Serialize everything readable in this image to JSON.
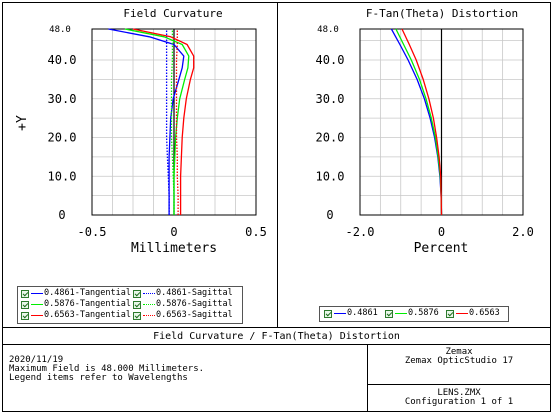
{
  "left_plot": {
    "title": "Field Curvature",
    "x_tick_labels": [
      "-0.5",
      "0",
      "0.5"
    ],
    "y_tick_labels": [
      "0",
      "10.0",
      "20.0",
      "30.0",
      "40.0"
    ],
    "y_max_label": "48.0",
    "xlabel": "Millimeters",
    "ylabel": "+Y"
  },
  "right_plot": {
    "title": "F-Tan(Theta) Distortion",
    "x_tick_labels": [
      "-2.0",
      "0",
      "2.0"
    ],
    "y_tick_labels": [
      "0",
      "10.0",
      "20.0",
      "30.0",
      "40.0"
    ],
    "y_max_label": "48.0",
    "xlabel": "Percent"
  },
  "legend_left": {
    "items": [
      {
        "label": "0.4861-Tangential",
        "color": "#0000ff",
        "style": "solid"
      },
      {
        "label": "0.4861-Sagittal",
        "color": "#0000ff",
        "style": "dotted"
      },
      {
        "label": "0.5876-Tangential",
        "color": "#00ee00",
        "style": "solid"
      },
      {
        "label": "0.5876-Sagittal",
        "color": "#00ee00",
        "style": "dotted"
      },
      {
        "label": "0.6563-Tangential",
        "color": "#ff0000",
        "style": "solid"
      },
      {
        "label": "0.6563-Sagittal",
        "color": "#ff0000",
        "style": "dotted"
      }
    ]
  },
  "legend_right": {
    "items": [
      {
        "label": "0.4861",
        "color": "#0000ff"
      },
      {
        "label": "0.5876",
        "color": "#00ee00"
      },
      {
        "label": "0.6563",
        "color": "#ff0000"
      }
    ]
  },
  "footer": {
    "title": "Field Curvature / F-Tan(Theta) Distortion",
    "date": "2020/11/19",
    "line2": "Maximum Field is 48.000 Millimeters.",
    "line3": "Legend items refer to Wavelengths",
    "brand": "Zemax",
    "product": "Zemax OpticStudio 17",
    "file": "LENS.ZMX",
    "config": "Configuration 1 of 1"
  },
  "chart_data": [
    {
      "type": "line",
      "title": "Field Curvature",
      "xlabel": "Millimeters",
      "ylabel": "+Y",
      "xlim": [
        -0.5,
        0.5
      ],
      "ylim": [
        0,
        48.0
      ],
      "grid": true,
      "series": [
        {
          "name": "0.4861-Tangential",
          "color": "#0000ff",
          "style": "solid",
          "y": [
            0,
            5,
            10,
            15,
            20,
            25,
            30,
            35,
            38,
            41,
            44,
            46,
            48
          ],
          "x": [
            -0.03,
            -0.03,
            -0.03,
            -0.03,
            -0.025,
            -0.02,
            -0.005,
            0.03,
            0.05,
            0.06,
            0.0,
            -0.15,
            -0.4
          ]
        },
        {
          "name": "0.4861-Sagittal",
          "color": "#0000ff",
          "style": "dotted",
          "y": [
            0,
            5,
            10,
            15,
            20,
            25,
            30,
            35,
            40,
            44,
            48
          ],
          "x": [
            -0.03,
            -0.03,
            -0.035,
            -0.04,
            -0.045,
            -0.045,
            -0.045,
            -0.045,
            -0.045,
            -0.045,
            -0.045
          ]
        },
        {
          "name": "0.5876-Tangential",
          "color": "#00ee00",
          "style": "solid",
          "y": [
            0,
            5,
            10,
            15,
            20,
            25,
            30,
            35,
            38,
            41,
            44,
            46,
            48
          ],
          "x": [
            0.0,
            0.0,
            0.0,
            0.005,
            0.01,
            0.02,
            0.035,
            0.065,
            0.085,
            0.09,
            0.05,
            -0.06,
            -0.3
          ]
        },
        {
          "name": "0.5876-Sagittal",
          "color": "#00ee00",
          "style": "dotted",
          "y": [
            0,
            5,
            10,
            15,
            20,
            25,
            30,
            35,
            40,
            44,
            48
          ],
          "x": [
            0.0,
            0.0,
            -0.005,
            -0.01,
            -0.015,
            -0.015,
            -0.015,
            -0.015,
            -0.01,
            -0.01,
            -0.01
          ]
        },
        {
          "name": "0.6563-Tangential",
          "color": "#ff0000",
          "style": "solid",
          "y": [
            0,
            5,
            10,
            15,
            20,
            25,
            30,
            35,
            38,
            41,
            44,
            46,
            48
          ],
          "x": [
            0.04,
            0.04,
            0.04,
            0.045,
            0.05,
            0.06,
            0.075,
            0.1,
            0.12,
            0.12,
            0.08,
            -0.02,
            -0.25
          ]
        },
        {
          "name": "0.6563-Sagittal",
          "color": "#ff0000",
          "style": "dotted",
          "y": [
            0,
            5,
            10,
            15,
            20,
            25,
            30,
            35,
            40,
            44,
            48
          ],
          "x": [
            0.025,
            0.025,
            0.02,
            0.02,
            0.015,
            0.015,
            0.015,
            0.015,
            0.015,
            0.02,
            0.02
          ]
        }
      ]
    },
    {
      "type": "line",
      "title": "F-Tan(Theta) Distortion",
      "xlabel": "Percent",
      "xlim": [
        -2.0,
        2.0
      ],
      "ylim": [
        0,
        48.0
      ],
      "grid": true,
      "series": [
        {
          "name": "0.4861",
          "color": "#0000ff",
          "style": "solid",
          "y": [
            0,
            5,
            10,
            15,
            20,
            25,
            30,
            35,
            40,
            44,
            48
          ],
          "x": [
            0,
            -0.01,
            -0.04,
            -0.09,
            -0.17,
            -0.28,
            -0.42,
            -0.6,
            -0.82,
            -1.02,
            -1.23
          ]
        },
        {
          "name": "0.5876",
          "color": "#00ee00",
          "style": "solid",
          "y": [
            0,
            5,
            10,
            15,
            20,
            25,
            30,
            35,
            40,
            44,
            48
          ],
          "x": [
            0,
            -0.01,
            -0.03,
            -0.08,
            -0.15,
            -0.25,
            -0.38,
            -0.54,
            -0.74,
            -0.93,
            -1.12
          ]
        },
        {
          "name": "0.6563",
          "color": "#ff0000",
          "style": "solid",
          "y": [
            0,
            5,
            10,
            15,
            20,
            25,
            30,
            35,
            40,
            44,
            48
          ],
          "x": [
            0,
            -0.01,
            -0.02,
            -0.06,
            -0.12,
            -0.2,
            -0.31,
            -0.45,
            -0.62,
            -0.79,
            -0.97
          ]
        }
      ]
    }
  ]
}
